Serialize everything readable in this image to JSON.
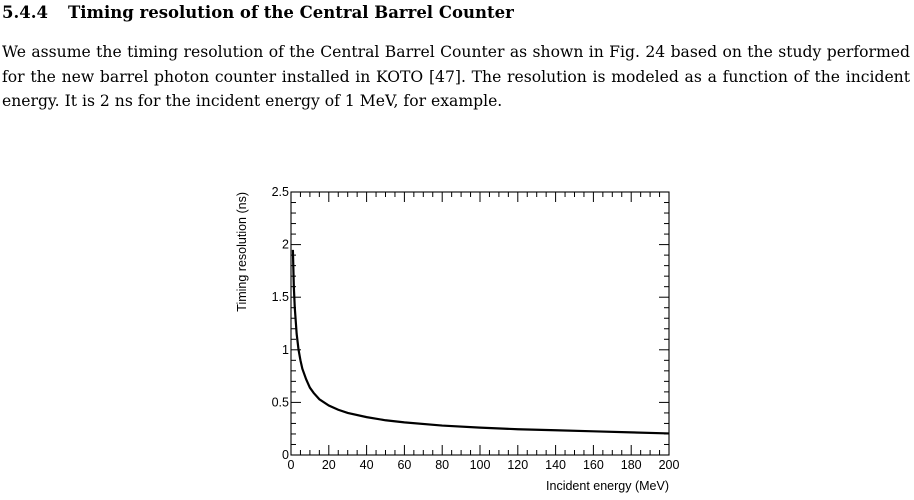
{
  "section": {
    "number": "5.4.4",
    "title": "Timing resolution of the Central Barrel Counter"
  },
  "paragraph": "We assume the timing resolution of the Central Barrel Counter as shown in Fig. 24 based on the study performed for the new barrel photon counter installed in KOTO  [47]. The resolution is modeled as a function of the incident energy. It is 2 ns for the incident energy of 1 MeV, for example.",
  "chart_data": {
    "type": "line",
    "xlabel": "Incident energy (MeV)",
    "ylabel": "Timing resolution (ns)",
    "xlim": [
      0,
      200
    ],
    "ylim": [
      0,
      2.5
    ],
    "x_ticks": [
      "0",
      "20",
      "40",
      "60",
      "80",
      "100",
      "120",
      "140",
      "160",
      "180",
      "200"
    ],
    "y_ticks": [
      "0",
      "0.5",
      "1",
      "1.5",
      "2",
      "2.5"
    ],
    "grid": false,
    "legend": "none",
    "series": [
      {
        "x": [
          1,
          1.5,
          2,
          3,
          4,
          5,
          6,
          8,
          10,
          12,
          15,
          20,
          25,
          30,
          40,
          50,
          60,
          80,
          100,
          120,
          140,
          160,
          180,
          200
        ],
        "y": [
          1.95,
          1.6,
          1.4,
          1.15,
          1.0,
          0.9,
          0.82,
          0.72,
          0.64,
          0.59,
          0.53,
          0.47,
          0.43,
          0.4,
          0.36,
          0.33,
          0.31,
          0.28,
          0.26,
          0.245,
          0.235,
          0.225,
          0.215,
          0.205
        ]
      }
    ]
  }
}
